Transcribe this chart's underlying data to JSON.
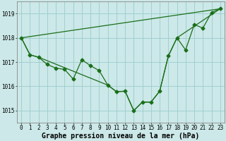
{
  "background_color": "#cce8e8",
  "grid_color": "#99cccc",
  "line_color": "#1a6e1a",
  "xlabel": "Graphe pression niveau de la mer (hPa)",
  "xlim": [
    -0.5,
    23.5
  ],
  "ylim": [
    1014.5,
    1019.5
  ],
  "yticks": [
    1015,
    1016,
    1017,
    1018,
    1019
  ],
  "xticks": [
    0,
    1,
    2,
    3,
    4,
    5,
    6,
    7,
    8,
    9,
    10,
    11,
    12,
    13,
    14,
    15,
    16,
    17,
    18,
    19,
    20,
    21,
    22,
    23
  ],
  "series1_x": [
    0,
    1,
    2,
    3,
    4,
    5,
    6,
    7,
    8,
    9,
    10,
    11,
    12,
    13,
    14,
    15,
    16,
    17,
    18,
    19,
    20,
    21,
    22,
    23
  ],
  "series1_y": [
    1018.0,
    1017.3,
    1017.2,
    1016.9,
    1016.75,
    1016.7,
    1016.3,
    1017.1,
    1016.85,
    1016.65,
    1016.05,
    1015.78,
    1015.8,
    1015.0,
    1015.35,
    1015.35,
    1015.8,
    1017.25,
    1018.0,
    1017.5,
    1018.55,
    1018.4,
    1019.05,
    1019.2
  ],
  "series2_x": [
    0,
    23
  ],
  "series2_y": [
    1018.0,
    1019.2
  ],
  "series3_x": [
    0,
    1,
    2,
    10,
    11,
    12,
    13,
    14,
    15,
    16,
    17,
    18,
    23
  ],
  "series3_y": [
    1018.0,
    1017.3,
    1017.2,
    1016.05,
    1015.78,
    1015.8,
    1015.0,
    1015.35,
    1015.35,
    1015.8,
    1017.25,
    1018.0,
    1019.2
  ],
  "marker_size": 2.5,
  "line_width": 0.9,
  "xlabel_fontsize": 7,
  "tick_fontsize": 5.5,
  "font_family": "monospace"
}
